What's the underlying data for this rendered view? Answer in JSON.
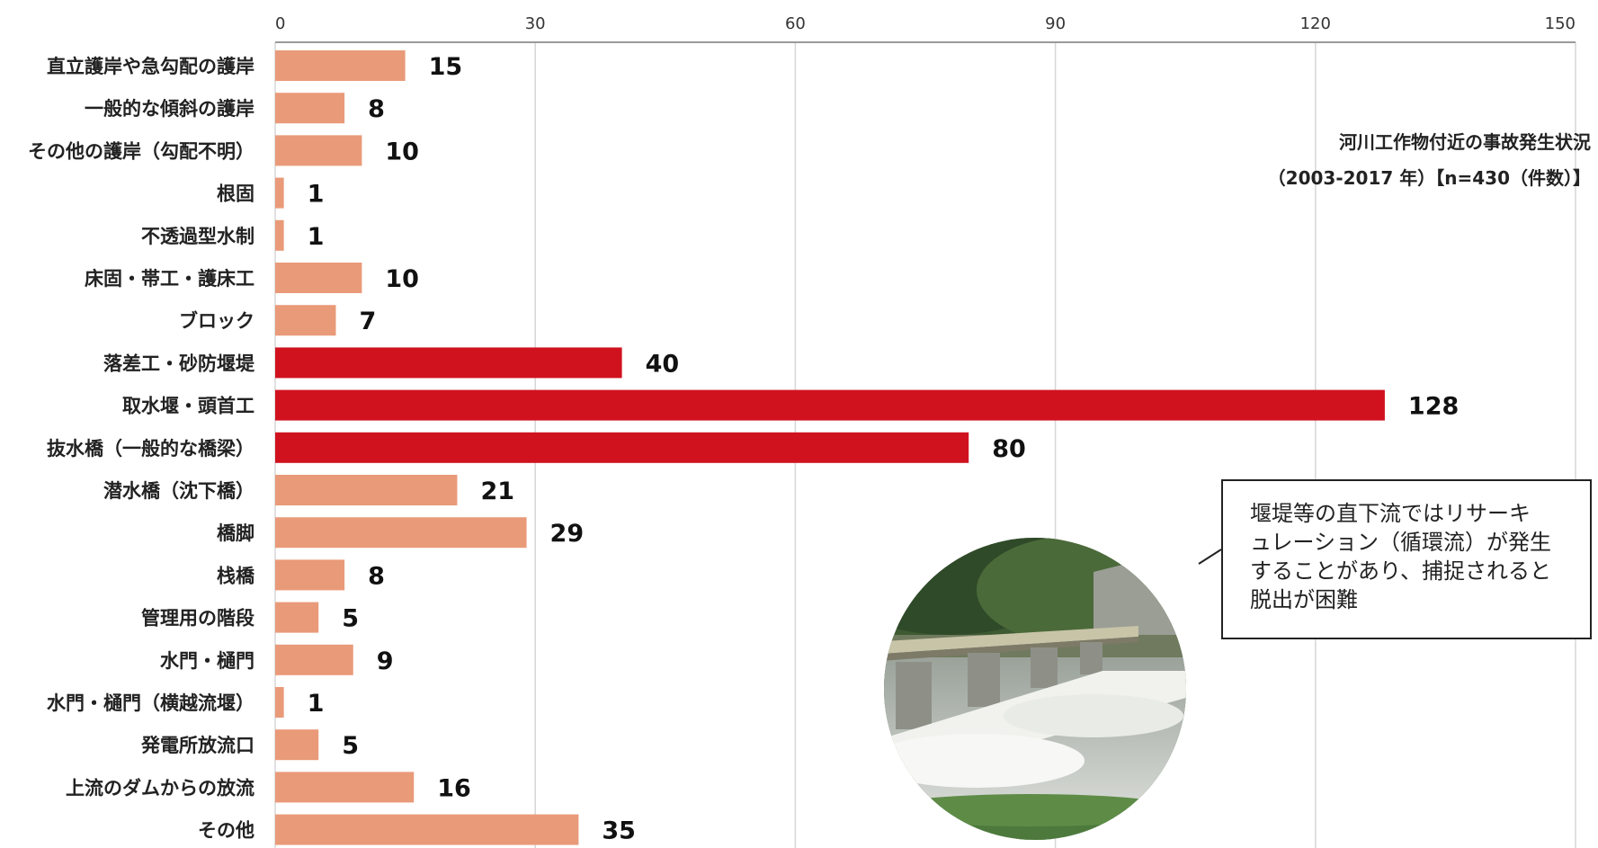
{
  "chart_data": {
    "type": "bar",
    "orientation": "horizontal",
    "xlim": [
      0,
      150
    ],
    "xticks": [
      0,
      30,
      60,
      90,
      120,
      150
    ],
    "categories": [
      "直立護岸や急勾配の護岸",
      "一般的な傾斜の護岸",
      "その他の護岸（勾配不明）",
      "根固",
      "不透過型水制",
      "床固・帯工・護床工",
      "ブロック",
      "落差工・砂防堰堤",
      "取水堰・頭首工",
      "抜水橋（一般的な橋梁）",
      "潜水橋（沈下橋）",
      "橋脚",
      "栈橋",
      "管理用の階段",
      "水門・樋門",
      "水門・樋門（横越流堰）",
      "発電所放流口",
      "上流のダムからの放流",
      "その他"
    ],
    "values": [
      15,
      8,
      10,
      1,
      1,
      10,
      7,
      40,
      128,
      80,
      21,
      29,
      8,
      5,
      9,
      1,
      5,
      16,
      35
    ],
    "highlight": [
      false,
      false,
      false,
      false,
      false,
      false,
      false,
      true,
      true,
      true,
      false,
      false,
      false,
      false,
      false,
      false,
      false,
      false,
      false
    ],
    "colors": {
      "normal": "#e99a79",
      "highlight": "#d0121f"
    },
    "grid": true,
    "source_title_lines": [
      "河川工作物付近の事故発生状況",
      "（2003-2017 年）【n=430（件数）】"
    ]
  },
  "callout": {
    "lines": [
      "堰堤等の直下流ではリサーキ",
      "ュレーション（循環流）が発生",
      "することがあり、捕捉されると",
      "脱出が困難"
    ]
  },
  "photo": {
    "icon": "river-weir-photo"
  }
}
